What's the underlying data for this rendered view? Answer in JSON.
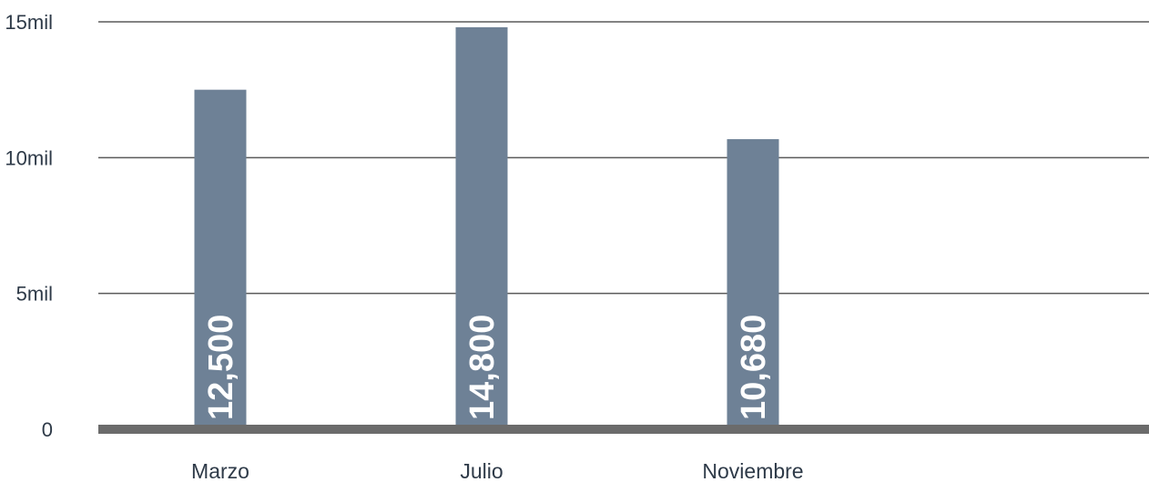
{
  "chart_data": {
    "type": "bar",
    "categories": [
      "Marzo",
      "Julio",
      "Noviembre"
    ],
    "values": [
      12500,
      14800,
      10680
    ],
    "value_labels": [
      "12,500",
      "14,800",
      "10,680"
    ],
    "title": "",
    "xlabel": "",
    "ylabel": "",
    "ylim": [
      0,
      15000
    ],
    "yticks": [
      0,
      5000,
      10000,
      15000
    ],
    "ytick_labels": [
      "0",
      "5mil",
      "10mil",
      "15mil"
    ],
    "grid": true,
    "legend": "none",
    "colors": {
      "bar": "#6e8196",
      "grid": "#5a5a5a",
      "baseline": "#6b6b6b",
      "text": "#2e3a48",
      "bar_label": "#ffffff"
    }
  }
}
